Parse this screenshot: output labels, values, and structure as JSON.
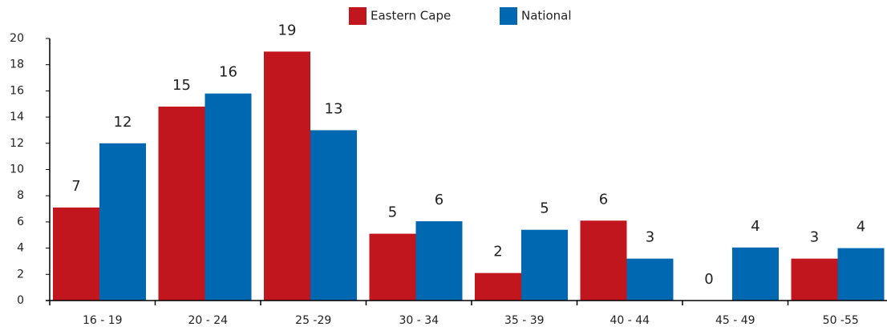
{
  "chart_data": {
    "type": "bar",
    "categories": [
      "16 - 19",
      "20 - 24",
      "25 -29",
      "30 - 34",
      "35 - 39",
      "40 - 44",
      "45 - 49",
      "50 -55"
    ],
    "series": [
      {
        "name": "Eastern Cape",
        "color": "#c1161e",
        "values": [
          7.1,
          14.8,
          19,
          5.1,
          2.1,
          6.1,
          0,
          3.2
        ],
        "value_labels": [
          "7",
          "15",
          "19",
          "5",
          "2",
          "6",
          "0",
          "3"
        ]
      },
      {
        "name": "National",
        "color": "#0067b1",
        "values": [
          12,
          15.8,
          13,
          6.05,
          5.4,
          3.2,
          4.05,
          4
        ],
        "value_labels": [
          "12",
          "16",
          "13",
          "6",
          "5",
          "3",
          "4",
          "4"
        ]
      }
    ],
    "ylim": [
      0,
      20
    ],
    "yticks": [
      0,
      2,
      4,
      6,
      8,
      10,
      12,
      14,
      16,
      18,
      20
    ],
    "grid": false,
    "legend": "top"
  }
}
